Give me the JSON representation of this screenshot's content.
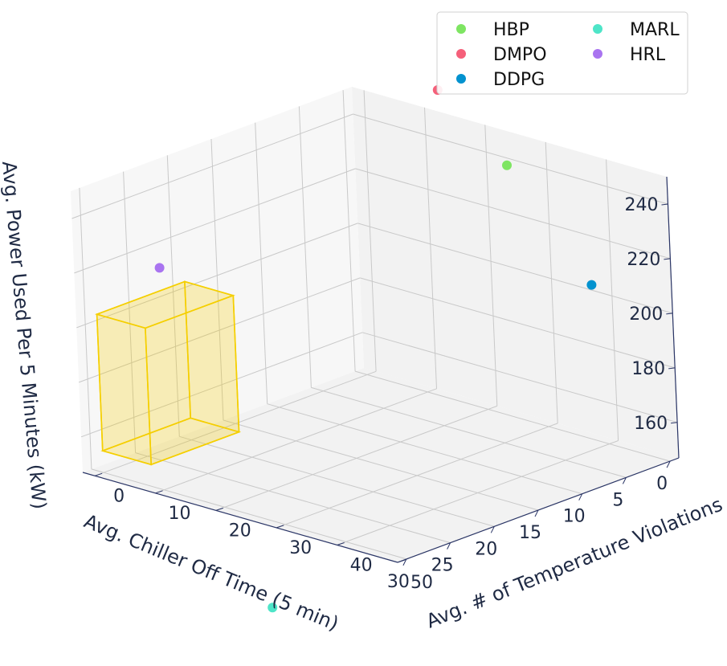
{
  "chart_data": {
    "type": "scatter",
    "projection": "3d",
    "xlabel": "Avg. Chiller Off Time (5 min)",
    "ylabel": "Avg. # of Temperature Violations",
    "zlabel": "Avg. Power Used Per 5 Minutes (kW)",
    "xticks": [
      0,
      5,
      10,
      15,
      20,
      25,
      30
    ],
    "yticks": [
      0,
      10,
      20,
      30,
      40,
      50
    ],
    "zticks": [
      160,
      180,
      200,
      220,
      240
    ],
    "xlim": [
      -1,
      31
    ],
    "ylim": [
      -2,
      50
    ],
    "zlim": [
      147,
      250
    ],
    "grid": true,
    "legend": {
      "position": "top-right",
      "columns": 2,
      "entries": [
        "HBP",
        "DMPO",
        "DDPG",
        "MARL",
        "HRL"
      ]
    },
    "series": [
      {
        "name": "HBP",
        "color": "#7ee562",
        "points": [
          {
            "x": 0.5,
            "y": 25.6,
            "z": 240.5
          }
        ]
      },
      {
        "name": "DMPO",
        "color": "#f5607a",
        "points": [
          {
            "x": 1.2,
            "y": 15.6,
            "z": 262.6
          }
        ]
      },
      {
        "name": "DDPG",
        "color": "#0392cf",
        "points": [
          {
            "x": 6.6,
            "y": 48.0,
            "z": 218.2
          }
        ]
      },
      {
        "name": "MARL",
        "color": "#4ee5c8",
        "points": [
          {
            "x": 24.6,
            "y": 19.2,
            "z": 103.3
          }
        ]
      },
      {
        "name": "HRL",
        "color": "#a974f0",
        "points": [
          {
            "x": 25.3,
            "y": 3.8,
            "z": 218.8
          }
        ]
      }
    ],
    "highlight_box": {
      "color": "#f5cf00",
      "x": [
        20,
        30
      ],
      "y": [
        0,
        8
      ],
      "z": [
        155,
        205
      ]
    }
  }
}
